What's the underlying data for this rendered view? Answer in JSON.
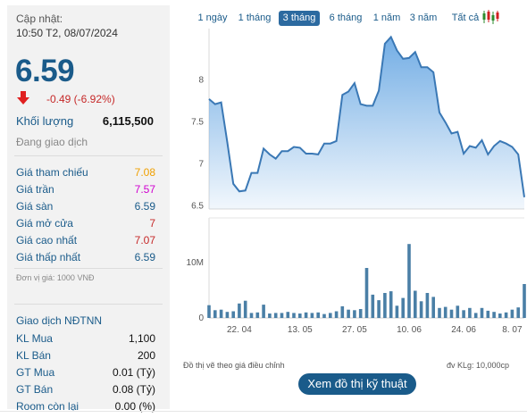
{
  "update": {
    "label": "Cập nhật:",
    "time": "10:50 T2, 08/07/2024"
  },
  "price": {
    "value": "6.59",
    "change": "-0.49 (-6.92%)",
    "direction": "down",
    "color": "#1a5b8a"
  },
  "volume": {
    "label": "Khối lượng",
    "value": "6,115,500"
  },
  "status": "Đang giao dịch",
  "details": [
    {
      "label": "Giá tham chiếu",
      "value": "7.08",
      "color": "#f0a000"
    },
    {
      "label": "Giá trần",
      "value": "7.57",
      "color": "#d000d0"
    },
    {
      "label": "Giá sàn",
      "value": "6.59",
      "color": "#1a5b8a"
    },
    {
      "label": "Giá mở cửa",
      "value": "7",
      "color": "#c62828"
    },
    {
      "label": "Giá cao nhất",
      "value": "7.07",
      "color": "#c62828"
    },
    {
      "label": "Giá thấp nhất",
      "value": "6.59",
      "color": "#1a5b8a"
    }
  ],
  "unit_note": "Đơn vị giá: 1000 VNĐ",
  "foreign": {
    "title": "Giao dịch NĐTNN",
    "rows": [
      {
        "label": "KL Mua",
        "value": "1,100"
      },
      {
        "label": "KL Bán",
        "value": "200"
      },
      {
        "label": "GT Mua",
        "value": "0.01 (Tỷ)"
      },
      {
        "label": "GT Bán",
        "value": "0.08 (Tỷ)"
      },
      {
        "label": "Room còn lại",
        "value": "0.00 (%)"
      }
    ]
  },
  "ranges": [
    "1 ngày",
    "1 tháng",
    "3 tháng",
    "6 tháng",
    "1 năm",
    "3 năm",
    "Tất cả"
  ],
  "active_range": "3 tháng",
  "notes": {
    "left": "Đồ thị vẽ theo giá điều chỉnh",
    "right": "đv KLg: 10,000cp"
  },
  "tech_button": "Xem đồ thị kỹ thuật",
  "chart_data": {
    "type": "area",
    "price_series": [
      7.76,
      7.7,
      7.72,
      7.25,
      6.75,
      6.66,
      6.67,
      6.88,
      6.88,
      7.17,
      7.1,
      7.05,
      7.14,
      7.14,
      7.19,
      7.18,
      7.11,
      7.11,
      7.1,
      7.23,
      7.23,
      7.26,
      7.81,
      7.85,
      7.95,
      7.7,
      7.68,
      7.68,
      7.86,
      8.42,
      8.5,
      8.34,
      8.24,
      8.25,
      8.32,
      8.14,
      8.14,
      8.08,
      7.6,
      7.48,
      7.35,
      7.37,
      7.11,
      7.2,
      7.18,
      7.27,
      7.1,
      7.2,
      7.26,
      7.23,
      7.19,
      7.1,
      6.59
    ],
    "volume_series": [
      2.3,
      1.4,
      1.5,
      1.1,
      1.2,
      2.6,
      3.1,
      0.9,
      1.0,
      2.4,
      0.8,
      0.9,
      0.9,
      1.1,
      0.9,
      0.8,
      1.0,
      0.9,
      1.0,
      0.7,
      0.9,
      1.2,
      2.1,
      1.5,
      1.4,
      1.6,
      9.0,
      4.2,
      3.2,
      4.5,
      4.8,
      2.2,
      3.6,
      13.3,
      4.9,
      3.0,
      4.5,
      3.8,
      1.8,
      2.0,
      1.5,
      2.2,
      1.4,
      1.8,
      0.9,
      1.8,
      1.3,
      1.1,
      0.8,
      1.0,
      1.5,
      1.9,
      6.1
    ],
    "y_ticks": [
      "8",
      "7.5",
      "7",
      "6.5"
    ],
    "y_tick_values": [
      8,
      7.5,
      7,
      6.5
    ],
    "ylim": [
      6.45,
      8.6
    ],
    "volume_ticks": [
      "10M",
      "0"
    ],
    "volume_tick_values": [
      10,
      0
    ],
    "volume_max": 18,
    "x_labels": [
      "22. 04",
      "13. 05",
      "27. 05",
      "10. 06",
      "24. 06",
      "8. 07"
    ],
    "x_label_indices": [
      5,
      15,
      24,
      33,
      42,
      50
    ],
    "line_color": "#3a78b5",
    "fill_top": "#5a9fe0",
    "bar_color": "#4a7fa6"
  }
}
